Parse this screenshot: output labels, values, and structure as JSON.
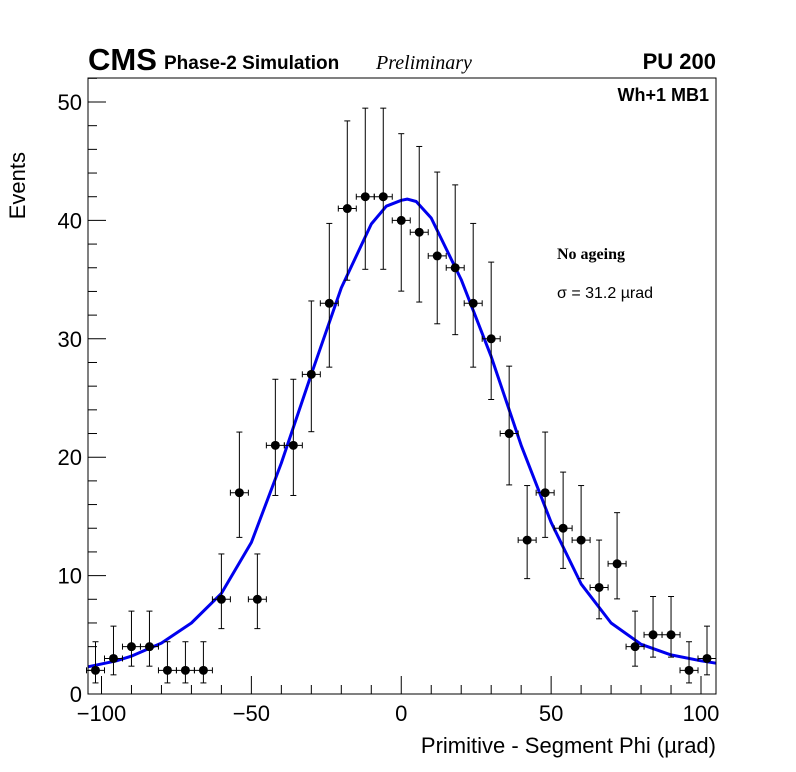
{
  "header": {
    "experiment": "CMS",
    "subtitle": "Phase-2 Simulation",
    "status": "Preliminary",
    "pileup": "PU 200"
  },
  "chart_data": {
    "type": "scatter",
    "title": "",
    "xlabel": "Primitive - Segment Phi (µrad)",
    "ylabel": "Events",
    "xlim": [
      -104.5,
      105
    ],
    "ylim": [
      0,
      52
    ],
    "xticks": [
      -100,
      -50,
      0,
      50,
      100
    ],
    "xtick_labels": [
      "−100",
      "−50",
      "0",
      "50",
      "100"
    ],
    "yticks": [
      0,
      10,
      20,
      30,
      40,
      50
    ],
    "ytick_labels": [
      "0",
      "10",
      "20",
      "30",
      "40",
      "50"
    ],
    "grid": false,
    "region_label": "Wh+1 MB1",
    "annotations": [
      "No ageing",
      "σ = 31.2  µrad"
    ],
    "bin_width": 6,
    "series": [
      {
        "name": "data",
        "style": "points-with-errors",
        "color": "#000000",
        "x": [
          -102,
          -96,
          -90,
          -84,
          -78,
          -72,
          -66,
          -60,
          -54,
          -48,
          -42,
          -36,
          -30,
          -24,
          -18,
          -12,
          -6,
          0,
          6,
          12,
          18,
          24,
          30,
          36,
          42,
          48,
          54,
          60,
          66,
          72,
          78,
          84,
          90,
          96,
          102
        ],
        "y": [
          2,
          3,
          4,
          4,
          2,
          2,
          2,
          8,
          17,
          8,
          21,
          21,
          27,
          33,
          41,
          42,
          42,
          40,
          39,
          37,
          36,
          33,
          30,
          22,
          13,
          17,
          14,
          13,
          9,
          11,
          4,
          5,
          5,
          2,
          3
        ]
      },
      {
        "name": "fit",
        "style": "line",
        "color": "#0000ee",
        "x": [
          -104.5,
          -95,
          -90,
          -80,
          -70,
          -60,
          -50,
          -40,
          -30,
          -20,
          -10,
          -5,
          0,
          2,
          5,
          10,
          20,
          30,
          40,
          50,
          60,
          70,
          80,
          90,
          100,
          105
        ],
        "y": [
          2.3,
          2.8,
          3.2,
          4.3,
          6.0,
          8.5,
          12.8,
          19.5,
          27.0,
          34.3,
          39.7,
          41.2,
          41.7,
          41.8,
          41.6,
          40.2,
          35.0,
          28.5,
          21.0,
          14.5,
          9.3,
          6.0,
          4.2,
          3.3,
          2.8,
          2.6
        ]
      }
    ]
  }
}
